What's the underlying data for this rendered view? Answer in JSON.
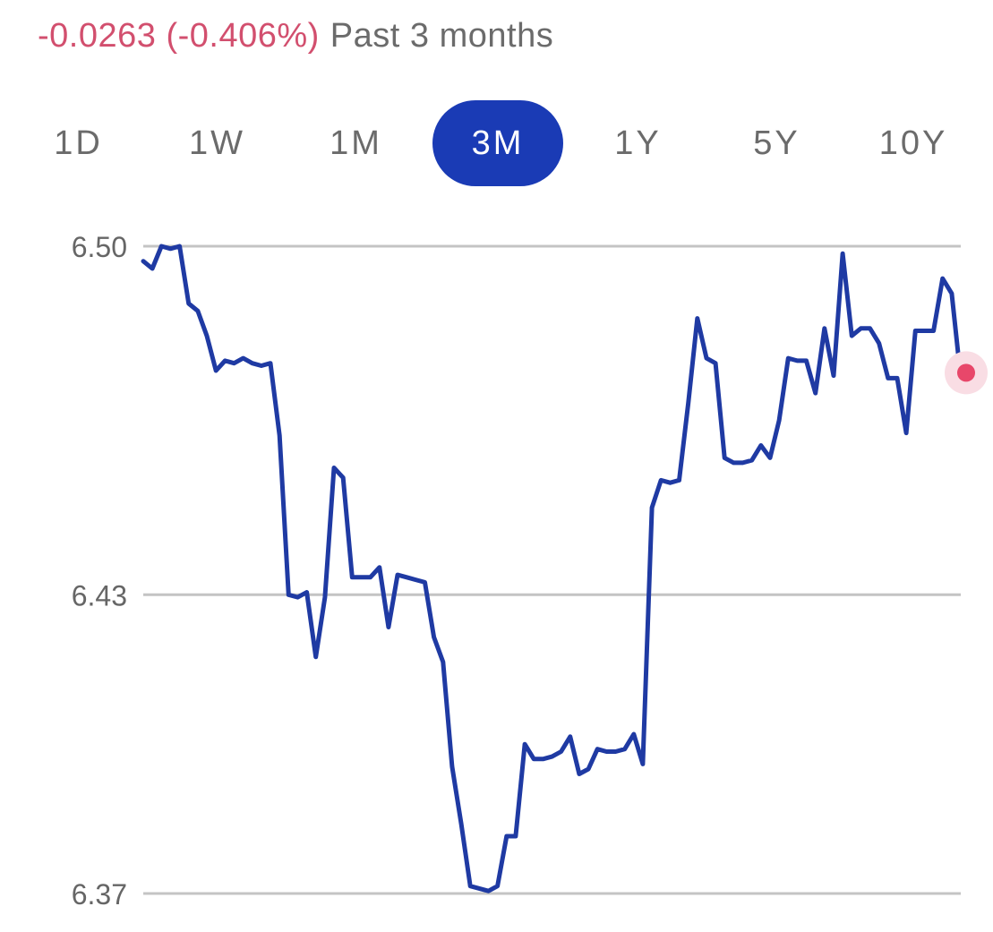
{
  "header": {
    "change_text": "-0.0263 (-0.406%)",
    "period_text": "Past 3 months"
  },
  "range_tabs": [
    {
      "label": "1D",
      "active": false
    },
    {
      "label": "1W",
      "active": false
    },
    {
      "label": "1M",
      "active": false
    },
    {
      "label": "3M",
      "active": true
    },
    {
      "label": "1Y",
      "active": false
    },
    {
      "label": "5Y",
      "active": false
    },
    {
      "label": "10Y",
      "active": false
    }
  ],
  "colors": {
    "accent": "#1a3bb5",
    "line": "#1f3aa3",
    "negative": "#d24f6e",
    "marker": "#e8476a",
    "marker_halo": "#f9dde4",
    "grid": "#c4c4c4",
    "muted_text": "#6b6b6b"
  },
  "chart_data": {
    "type": "line",
    "ylim": [
      6.37,
      6.5
    ],
    "yticks": [
      {
        "value": 6.5,
        "label": "6.50"
      },
      {
        "value": 6.43,
        "label": "6.43"
      },
      {
        "value": 6.37,
        "label": "6.37"
      }
    ],
    "grid": "horizontal",
    "last_point_marker": true,
    "series": [
      {
        "values": [
          6.497,
          6.4955,
          6.5,
          6.4995,
          6.5,
          6.4885,
          6.487,
          6.482,
          6.475,
          6.477,
          6.4765,
          6.4775,
          6.4765,
          6.476,
          6.4765,
          6.462,
          6.43,
          6.4295,
          6.4305,
          6.4175,
          6.4295,
          6.4555,
          6.4535,
          6.4335,
          6.4335,
          6.4335,
          6.4355,
          6.4235,
          6.434,
          6.4335,
          6.433,
          6.4325,
          6.4215,
          6.4165,
          6.3955,
          6.384,
          6.3715,
          6.371,
          6.3705,
          6.3715,
          6.3815,
          6.3815,
          6.4,
          6.397,
          6.397,
          6.3975,
          6.3985,
          6.4015,
          6.394,
          6.395,
          6.399,
          6.3985,
          6.3985,
          6.399,
          6.402,
          6.396,
          6.4475,
          6.453,
          6.4525,
          6.453,
          6.4685,
          6.4855,
          6.4775,
          6.4765,
          6.4575,
          6.4565,
          6.4565,
          6.457,
          6.46,
          6.4575,
          6.465,
          6.4775,
          6.477,
          6.477,
          6.4705,
          6.4835,
          6.474,
          6.4985,
          6.482,
          6.4835,
          6.4835,
          6.4805,
          6.4735,
          6.4735,
          6.4625,
          6.483,
          6.483,
          6.483,
          6.4935,
          6.4905,
          6.4735
        ]
      }
    ]
  }
}
